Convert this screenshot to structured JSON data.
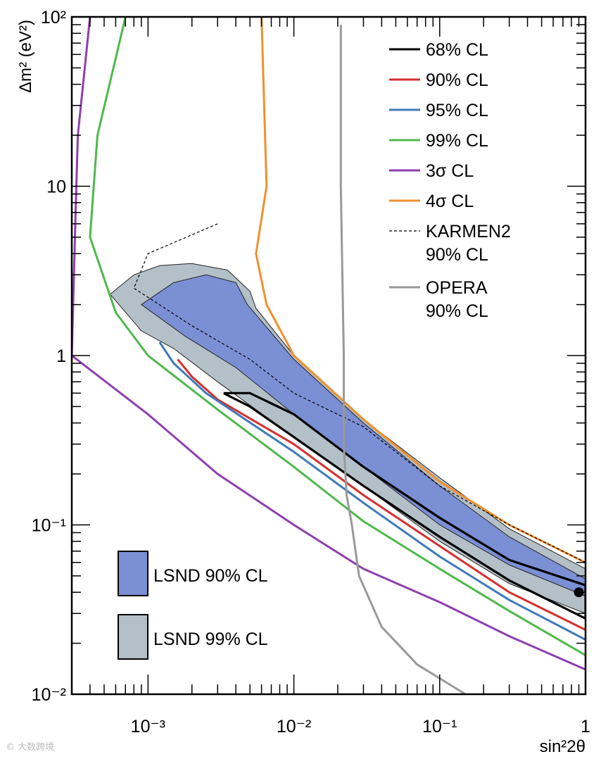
{
  "chart_data": {
    "type": "line",
    "title": "",
    "xlabel": "sin²2θ",
    "ylabel": "Δm² (eV²)",
    "xscale": "log",
    "yscale": "log",
    "xlim": [
      0.0003,
      1
    ],
    "ylim": [
      0.01,
      100
    ],
    "x_tick_labels": [
      "10⁻³",
      "10⁻²",
      "10⁻¹",
      "1"
    ],
    "y_tick_labels": [
      "10⁻²",
      "10⁻¹",
      "1",
      "10",
      "10²"
    ],
    "grid": false,
    "legend_position": "top-right",
    "best_fit": {
      "x": 0.9,
      "y": 0.04
    },
    "regions": [
      {
        "name": "LSND 99% CL",
        "color": "#b4c0c8",
        "points": [
          [
            0.00055,
            2.3
          ],
          [
            0.0008,
            3.0
          ],
          [
            0.0012,
            3.4
          ],
          [
            0.002,
            3.5
          ],
          [
            0.0035,
            3.2
          ],
          [
            0.005,
            2.4
          ],
          [
            0.0055,
            1.9
          ],
          [
            0.01,
            1.0
          ],
          [
            0.03,
            0.42
          ],
          [
            0.1,
            0.19
          ],
          [
            0.3,
            0.095
          ],
          [
            1,
            0.055
          ],
          [
            1,
            0.03
          ],
          [
            0.3,
            0.045
          ],
          [
            0.1,
            0.08
          ],
          [
            0.03,
            0.17
          ],
          [
            0.01,
            0.33
          ],
          [
            0.003,
            0.7
          ],
          [
            0.0015,
            1.1
          ],
          [
            0.0009,
            1.4
          ],
          [
            0.00055,
            2.3
          ]
        ]
      },
      {
        "name": "LSND 90% CL",
        "color": "#7b8fd4",
        "points": [
          [
            0.0009,
            2.0
          ],
          [
            0.0015,
            2.7
          ],
          [
            0.0025,
            3.0
          ],
          [
            0.004,
            2.7
          ],
          [
            0.0048,
            2.0
          ],
          [
            0.01,
            0.95
          ],
          [
            0.03,
            0.4
          ],
          [
            0.1,
            0.17
          ],
          [
            0.3,
            0.085
          ],
          [
            1,
            0.048
          ],
          [
            1,
            0.038
          ],
          [
            0.3,
            0.058
          ],
          [
            0.1,
            0.1
          ],
          [
            0.03,
            0.22
          ],
          [
            0.01,
            0.45
          ],
          [
            0.004,
            0.85
          ],
          [
            0.0018,
            1.3
          ],
          [
            0.0009,
            2.0
          ]
        ]
      }
    ],
    "series": [
      {
        "name": "68% CL",
        "color": "#000000",
        "x": [
          0.0033,
          0.005,
          0.01,
          0.03,
          0.1,
          0.3,
          1,
          1,
          0.3,
          0.1,
          0.03,
          0.01,
          0.005,
          0.0033
        ],
        "y": [
          0.6,
          0.5,
          0.33,
          0.17,
          0.085,
          0.047,
          0.028,
          0.044,
          0.062,
          0.11,
          0.22,
          0.45,
          0.6,
          0.6
        ]
      },
      {
        "name": "90% CL",
        "color": "#d62f2f",
        "x": [
          0.0016,
          0.002,
          0.003,
          0.01,
          0.03,
          0.1,
          0.3,
          1
        ],
        "y": [
          0.95,
          0.75,
          0.55,
          0.3,
          0.15,
          0.075,
          0.04,
          0.024
        ]
      },
      {
        "name": "95% CL",
        "color": "#3f7ab8",
        "x": [
          0.0012,
          0.0015,
          0.0025,
          0.01,
          0.03,
          0.1,
          0.3,
          1
        ],
        "y": [
          1.2,
          0.9,
          0.6,
          0.27,
          0.135,
          0.065,
          0.036,
          0.021
        ]
      },
      {
        "name": "99% CL",
        "color": "#4fb84c",
        "x": [
          0.0007,
          0.00045,
          0.0004,
          0.0006,
          0.001,
          0.003,
          0.01,
          0.03,
          0.1,
          0.3,
          1
        ],
        "y": [
          100,
          20,
          5,
          1.8,
          1.0,
          0.48,
          0.22,
          0.105,
          0.055,
          0.031,
          0.017
        ]
      },
      {
        "name": "3σ CL",
        "color": "#8e3fb0",
        "x": [
          0.0004,
          0.00033,
          0.00032,
          0.0003,
          0.001,
          0.003,
          0.01,
          0.03,
          0.1,
          0.3,
          1
        ],
        "y": [
          100,
          20,
          8,
          1.0,
          0.45,
          0.2,
          0.1,
          0.055,
          0.035,
          0.022,
          0.014
        ]
      },
      {
        "name": "4σ CL",
        "color": "#f0902f",
        "x": [
          0.006,
          0.0065,
          0.0055,
          0.0065,
          0.01,
          0.03,
          0.1,
          0.3,
          1
        ],
        "y": [
          100,
          10,
          4,
          2.0,
          1.0,
          0.42,
          0.18,
          0.1,
          0.06
        ]
      },
      {
        "name": "KARMEN2\n90% CL",
        "color": "#000000",
        "x": [
          0.003,
          0.001,
          0.0008,
          0.002,
          0.005,
          0.01,
          0.03,
          0.1,
          0.3,
          1
        ],
        "y": [
          6.0,
          4.0,
          2.5,
          1.5,
          0.95,
          0.6,
          0.38,
          0.17,
          0.1,
          0.06
        ]
      },
      {
        "name": "OPERA\n90% CL",
        "color": "#999999",
        "x": [
          0.021,
          0.021,
          0.022,
          0.022,
          0.023,
          0.025,
          0.028,
          0.04,
          0.07,
          0.15
        ],
        "y": [
          90,
          10,
          1.0,
          0.3,
          0.15,
          0.1,
          0.05,
          0.025,
          0.015,
          0.01
        ]
      }
    ]
  },
  "legend_boxes": [
    {
      "label": "LSND 90% CL",
      "color": "#7b8fd4"
    },
    {
      "label": "LSND 99% CL",
      "color": "#b4c0c8"
    }
  ],
  "watermark": "© 大数跨境"
}
